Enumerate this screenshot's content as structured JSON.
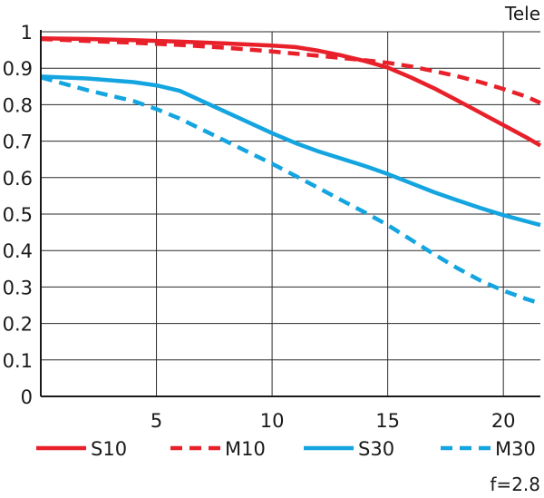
{
  "chart_data": {
    "type": "line",
    "title": "Tele",
    "footnote": "f=2.8",
    "xlabel": "",
    "ylabel": "",
    "xlim": [
      0,
      21.6
    ],
    "ylim": [
      0,
      1
    ],
    "xticks": [
      5,
      10,
      15,
      20
    ],
    "xtick_labels": [
      "5",
      "10",
      "15",
      "20"
    ],
    "yticks": [
      0,
      0.1,
      0.2,
      0.3,
      0.4,
      0.5,
      0.6,
      0.7,
      0.8,
      0.9,
      1
    ],
    "ytick_labels": [
      "0",
      "0.1",
      "0.2",
      "0.3",
      "0.4",
      "0.5",
      "0.6",
      "0.7",
      "0.8",
      "0.9",
      "1"
    ],
    "grid": true,
    "legend_position": "bottom",
    "series": [
      {
        "name": "S10",
        "color": "#e8202a",
        "dash": "solid",
        "x": [
          0,
          2,
          4,
          5,
          6,
          8,
          10,
          11,
          12,
          13,
          14,
          15,
          16,
          17,
          18,
          19,
          20,
          21,
          21.6
        ],
        "y": [
          0.982,
          0.98,
          0.977,
          0.975,
          0.973,
          0.968,
          0.962,
          0.958,
          0.948,
          0.935,
          0.92,
          0.902,
          0.875,
          0.845,
          0.812,
          0.778,
          0.744,
          0.71,
          0.688
        ]
      },
      {
        "name": "M10",
        "color": "#e8202a",
        "dash": "dashed",
        "x": [
          0,
          2,
          4,
          5,
          6,
          8,
          10,
          11,
          12,
          13,
          14,
          15,
          16,
          17,
          18,
          19,
          20,
          21,
          21.6
        ],
        "y": [
          0.98,
          0.975,
          0.97,
          0.967,
          0.964,
          0.956,
          0.946,
          0.94,
          0.934,
          0.928,
          0.922,
          0.915,
          0.905,
          0.892,
          0.878,
          0.862,
          0.843,
          0.822,
          0.805
        ]
      },
      {
        "name": "S30",
        "color": "#14a5e0",
        "dash": "solid",
        "x": [
          0,
          2,
          4,
          5,
          6,
          8,
          10,
          11,
          12,
          13,
          14,
          15,
          16,
          17,
          18,
          19,
          20,
          21,
          21.6
        ],
        "y": [
          0.877,
          0.872,
          0.862,
          0.853,
          0.838,
          0.78,
          0.722,
          0.695,
          0.672,
          0.652,
          0.632,
          0.61,
          0.585,
          0.56,
          0.538,
          0.517,
          0.497,
          0.48,
          0.47
        ]
      },
      {
        "name": "M30",
        "color": "#14a5e0",
        "dash": "dashed",
        "x": [
          0,
          2,
          4,
          5,
          6,
          8,
          10,
          11,
          12,
          13,
          14,
          15,
          16,
          17,
          18,
          19,
          20,
          21,
          21.6
        ],
        "y": [
          0.875,
          0.84,
          0.81,
          0.788,
          0.762,
          0.7,
          0.638,
          0.605,
          0.572,
          0.538,
          0.505,
          0.47,
          0.43,
          0.39,
          0.352,
          0.318,
          0.29,
          0.267,
          0.255
        ]
      }
    ]
  }
}
